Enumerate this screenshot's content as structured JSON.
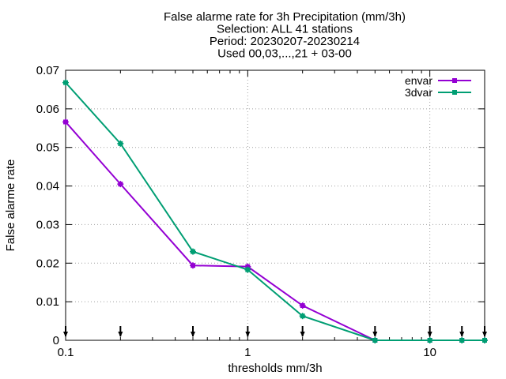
{
  "chart_data": {
    "type": "line",
    "title_lines": [
      "False alarme rate  for 3h Precipitation (mm/3h)",
      "Selection: ALL      41 stations",
      "Period: 20230207-20230214",
      "Used 00,03,...,21 + 03-00"
    ],
    "xlabel": "thresholds mm/3h",
    "ylabel": "False alarme rate",
    "xscale": "log",
    "xlim": [
      0.1,
      20
    ],
    "ylim": [
      0,
      0.07
    ],
    "x_ticks": [
      {
        "value": 0.1,
        "label": "0.1"
      },
      {
        "value": 1,
        "label": "1"
      },
      {
        "value": 10,
        "label": "10"
      }
    ],
    "y_ticks": [
      {
        "value": 0,
        "label": "0"
      },
      {
        "value": 0.01,
        "label": "0.01"
      },
      {
        "value": 0.02,
        "label": "0.02"
      },
      {
        "value": 0.03,
        "label": "0.03"
      },
      {
        "value": 0.04,
        "label": "0.04"
      },
      {
        "value": 0.05,
        "label": "0.05"
      },
      {
        "value": 0.06,
        "label": "0.06"
      },
      {
        "value": 0.07,
        "label": "0.07"
      }
    ],
    "grid": true,
    "legend_position": "top-right",
    "marker_x": [
      0.1,
      0.2,
      0.5,
      1,
      2,
      5,
      10,
      15,
      20
    ],
    "series": [
      {
        "name": "envar",
        "color": "#9400d3",
        "x": [
          0.1,
          0.2,
          0.5,
          1,
          2,
          5,
          10,
          15,
          20
        ],
        "y": [
          0.0566,
          0.0405,
          0.0194,
          0.0191,
          0.009,
          0.0,
          0.0,
          0.0,
          0.0
        ]
      },
      {
        "name": "3dvar",
        "color": "#009e73",
        "x": [
          0.1,
          0.2,
          0.5,
          1,
          2,
          5,
          10,
          15,
          20
        ],
        "y": [
          0.0668,
          0.051,
          0.023,
          0.0183,
          0.0063,
          0.0,
          0.0,
          0.0,
          0.0
        ]
      }
    ]
  }
}
